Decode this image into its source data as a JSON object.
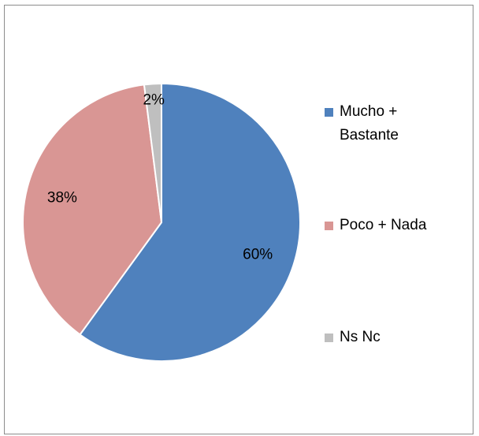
{
  "chart_data": {
    "type": "pie",
    "title": "",
    "categories": [
      "Mucho + Bastante",
      "Poco + Nada",
      "Ns Nc"
    ],
    "values": [
      60,
      38,
      2
    ],
    "labels": [
      "60%",
      "38%",
      "2%"
    ],
    "colors": [
      "#4f81bd",
      "#d99694",
      "#bfbfbf"
    ],
    "legend_position": "right"
  }
}
